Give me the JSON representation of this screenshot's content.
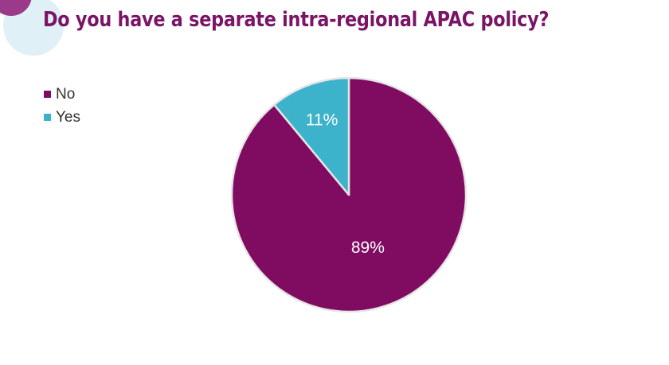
{
  "title": "Do you have a separate intra-regional APAC policy?",
  "colors": {
    "accent": "#800c62",
    "secondary": "#3db3cb",
    "title": "#7a1466",
    "deco_magenta": "#9b3a8a",
    "deco_light_blue": "#dff0f6"
  },
  "chart_data": {
    "type": "pie",
    "start": "top",
    "direction": "clockwise",
    "legend_position": "top-left",
    "slices": [
      {
        "label": "No",
        "value": 89,
        "display": "89%",
        "color": "#800c62"
      },
      {
        "label": "Yes",
        "value": 11,
        "display": "11%",
        "color": "#3db3cb"
      }
    ]
  }
}
